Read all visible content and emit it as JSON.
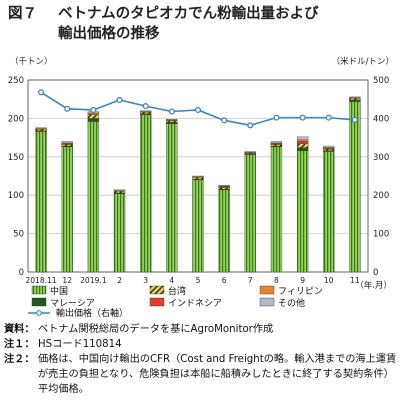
{
  "figure": {
    "number": "図７",
    "title_line1": "ベトナムのタピオカでん粉輸出量および",
    "title_line2": "輸出価格の推移"
  },
  "chart_data": {
    "type": "bar",
    "stacked": true,
    "y_unit_left": "（千トン）",
    "y_unit_right": "（米ドル/トン）",
    "x_unit": "（年.月）",
    "categories": [
      "2018.11",
      "12",
      "2019.1",
      "2",
      "3",
      "4",
      "5",
      "6",
      "7",
      "8",
      "9",
      "10",
      "11"
    ],
    "ylim_left": [
      0,
      250
    ],
    "yticks_left": [
      0,
      50,
      100,
      150,
      200,
      250
    ],
    "ylim_right": [
      0,
      500
    ],
    "yticks_right": [
      0,
      100,
      200,
      300,
      400,
      500
    ],
    "series": [
      {
        "name": "中国",
        "kind": "bar",
        "axis": "left",
        "values": [
          183,
          163,
          196,
          102,
          205,
          193,
          120,
          107,
          153,
          163,
          158,
          157,
          222
        ]
      },
      {
        "name": "マレーシア",
        "kind": "bar",
        "axis": "left",
        "values": [
          1,
          1,
          4,
          1,
          1,
          2,
          1,
          1,
          1,
          1,
          4,
          1,
          2
        ]
      },
      {
        "name": "台湾",
        "kind": "bar",
        "axis": "left",
        "values": [
          2,
          2,
          5,
          2,
          2,
          2,
          2,
          2,
          1,
          2,
          5,
          2,
          2
        ]
      },
      {
        "name": "インドネシア",
        "kind": "bar",
        "axis": "left",
        "values": [
          0,
          1,
          0,
          0,
          0,
          0,
          0,
          1,
          0,
          1,
          3,
          1,
          0
        ]
      },
      {
        "name": "フィリピン",
        "kind": "bar",
        "axis": "left",
        "values": [
          1,
          1,
          2,
          1,
          1,
          1,
          1,
          1,
          1,
          1,
          2,
          1,
          1
        ]
      },
      {
        "name": "その他",
        "kind": "bar",
        "axis": "left",
        "values": [
          1,
          2,
          2,
          1,
          1,
          1,
          1,
          1,
          1,
          2,
          4,
          2,
          1
        ]
      },
      {
        "name": "輸出価格（右軸）",
        "kind": "line",
        "axis": "right",
        "values": [
          468,
          425,
          422,
          448,
          432,
          418,
          422,
          395,
          382,
          402,
          402,
          402,
          396
        ]
      }
    ],
    "colors": {
      "china_fill": "#9cce5a",
      "china_stripe": "#2e7d1e",
      "malaysia": "#1f5a1a",
      "taiwan_fill": "#f3d43c",
      "taiwan_stripe": "#222222",
      "indonesia": "#e63a2a",
      "philippines": "#e8842c",
      "others": "#b4b8c6",
      "price_line": "#3b86c2"
    },
    "legend": [
      {
        "key": "china",
        "label": "中国"
      },
      {
        "key": "taiwan",
        "label": "台湾"
      },
      {
        "key": "philippines",
        "label": "フィリピン"
      },
      {
        "key": "malaysia",
        "label": "マレーシア"
      },
      {
        "key": "indonesia",
        "label": "インドネシア"
      },
      {
        "key": "others",
        "label": "その他"
      },
      {
        "key": "price",
        "label": "輸出価格（右軸）"
      }
    ],
    "legend_position": "bottom-left"
  },
  "notes": [
    {
      "label": "資料：",
      "text": "ベトナム関税総局のデータを基にAgroMonitor作成"
    },
    {
      "label": "注１：",
      "text": "HSコード110814"
    },
    {
      "label": "注２：",
      "text": "価格は、中国向け輸出のCFR（Cost and Freightの略。輸入港までの海上運賃が売主の負担となり、危険負担は本船に船積みしたときに終了する契約条件）平均価格。"
    }
  ]
}
